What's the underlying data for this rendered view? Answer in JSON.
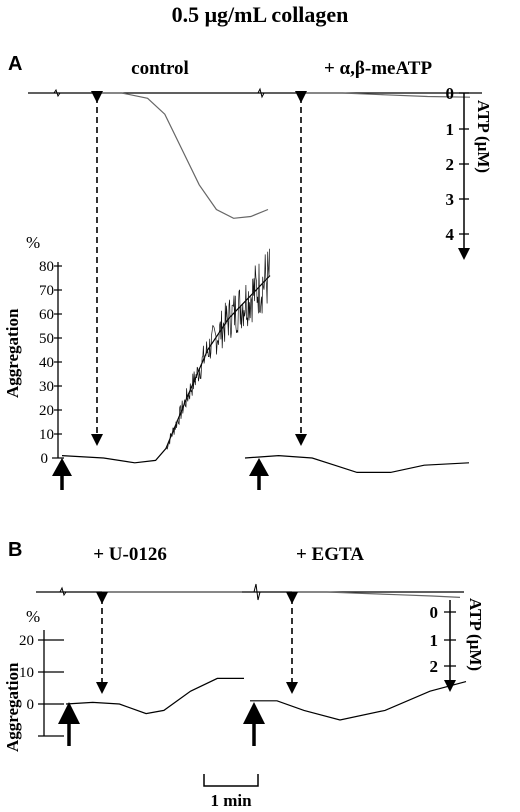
{
  "title": "0.5 μg/mL collagen",
  "chart_data": [
    {
      "panel": "A",
      "type": "line",
      "conditions": [
        "control",
        "+ α,β-meATP"
      ],
      "atp_axis": {
        "label": "ATP (μM)",
        "ticks": [
          0,
          1,
          2,
          3,
          4
        ],
        "range": [
          0,
          4
        ]
      },
      "aggregation_axis": {
        "label": "Aggregation",
        "unit": "%",
        "ticks": [
          0,
          10,
          20,
          30,
          40,
          50,
          60,
          70,
          80
        ],
        "range": [
          0,
          85
        ]
      },
      "series": [
        {
          "name": "ATP",
          "condition": "control",
          "x": [
            0.0,
            0.3,
            0.6,
            0.8,
            1.0,
            1.2,
            1.4,
            1.6,
            1.8,
            2.0
          ],
          "y": [
            0.0,
            0.0,
            0.15,
            0.6,
            1.6,
            2.6,
            3.3,
            3.55,
            3.5,
            3.3
          ]
        },
        {
          "name": "Aggregation",
          "condition": "control",
          "x": [
            0.0,
            0.4,
            0.7,
            0.9,
            1.0,
            1.2,
            1.4,
            1.6,
            1.8,
            2.0
          ],
          "y": [
            1,
            0,
            -2,
            -1,
            4,
            25,
            45,
            58,
            67,
            76
          ]
        },
        {
          "name": "ATP",
          "condition": "+ α,β-meATP",
          "x": [
            0.0,
            0.5,
            1.0,
            1.5,
            2.0
          ],
          "y": [
            0.0,
            0.0,
            0.05,
            0.1,
            0.12
          ]
        },
        {
          "name": "Aggregation",
          "condition": "+ α,β-meATP",
          "x": [
            0.0,
            0.3,
            0.6,
            0.8,
            1.0,
            1.3,
            1.6,
            2.0
          ],
          "y": [
            0,
            1,
            0,
            -3,
            -6,
            -6,
            -3,
            -2
          ]
        }
      ]
    },
    {
      "panel": "B",
      "type": "line",
      "conditions": [
        "+ U-0126",
        "+ EGTA"
      ],
      "atp_axis": {
        "label": "ATP (μM)",
        "ticks": [
          0,
          1,
          2
        ],
        "range": [
          0,
          2.5
        ]
      },
      "aggregation_axis": {
        "label": "Aggregation",
        "unit": "%",
        "ticks": [
          0,
          10,
          20
        ],
        "range": [
          -8,
          22
        ]
      },
      "series": [
        {
          "name": "ATP",
          "condition": "+ U-0126",
          "x": [
            0.0,
            0.5,
            1.0,
            1.5,
            2.0
          ],
          "y": [
            0.0,
            0.0,
            0.0,
            0.0,
            0.0
          ]
        },
        {
          "name": "Aggregation",
          "condition": "+ U-0126",
          "x": [
            0.0,
            0.3,
            0.6,
            0.9,
            1.1,
            1.4,
            1.7,
            2.0
          ],
          "y": [
            0,
            0.5,
            0,
            -3,
            -2,
            4,
            8,
            8
          ]
        },
        {
          "name": "ATP",
          "condition": "+ EGTA",
          "x": [
            0.0,
            0.5,
            1.0,
            1.5,
            2.0,
            2.4
          ],
          "y": [
            0.0,
            0.0,
            0.05,
            0.1,
            0.15,
            0.2
          ]
        },
        {
          "name": "Aggregation",
          "condition": "+ EGTA",
          "x": [
            0.0,
            0.3,
            0.6,
            1.0,
            1.5,
            2.0,
            2.4
          ],
          "y": [
            1,
            1,
            -2,
            -5,
            -2,
            4,
            7
          ]
        }
      ]
    }
  ],
  "scale_bar": {
    "label": "1 min",
    "value": 1
  }
}
